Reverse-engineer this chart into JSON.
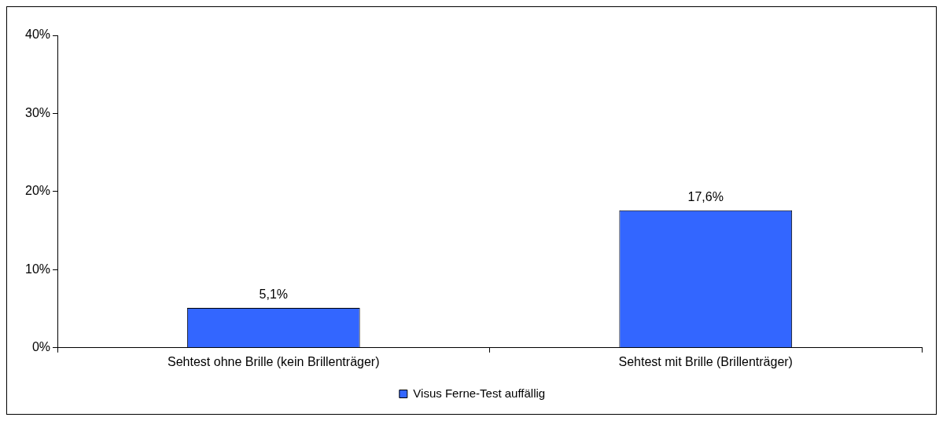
{
  "chart_data": {
    "type": "bar",
    "categories": [
      "Sehtest ohne Brille (kein Brillenträger)",
      "Sehtest mit Brille (Brillenträger)"
    ],
    "series": [
      {
        "name": "Visus Ferne-Test auffällig",
        "color": "#3366ff",
        "values": [
          5.1,
          17.6
        ],
        "value_labels": [
          "5,1%",
          "17,6%"
        ]
      }
    ],
    "ylim": [
      0,
      40
    ],
    "yticks": [
      {
        "value": 0,
        "label": "0%"
      },
      {
        "value": 10,
        "label": "10%"
      },
      {
        "value": 20,
        "label": "20%"
      },
      {
        "value": 30,
        "label": "30%"
      },
      {
        "value": 40,
        "label": "40%"
      }
    ],
    "grid": false,
    "legend": "bottom"
  }
}
